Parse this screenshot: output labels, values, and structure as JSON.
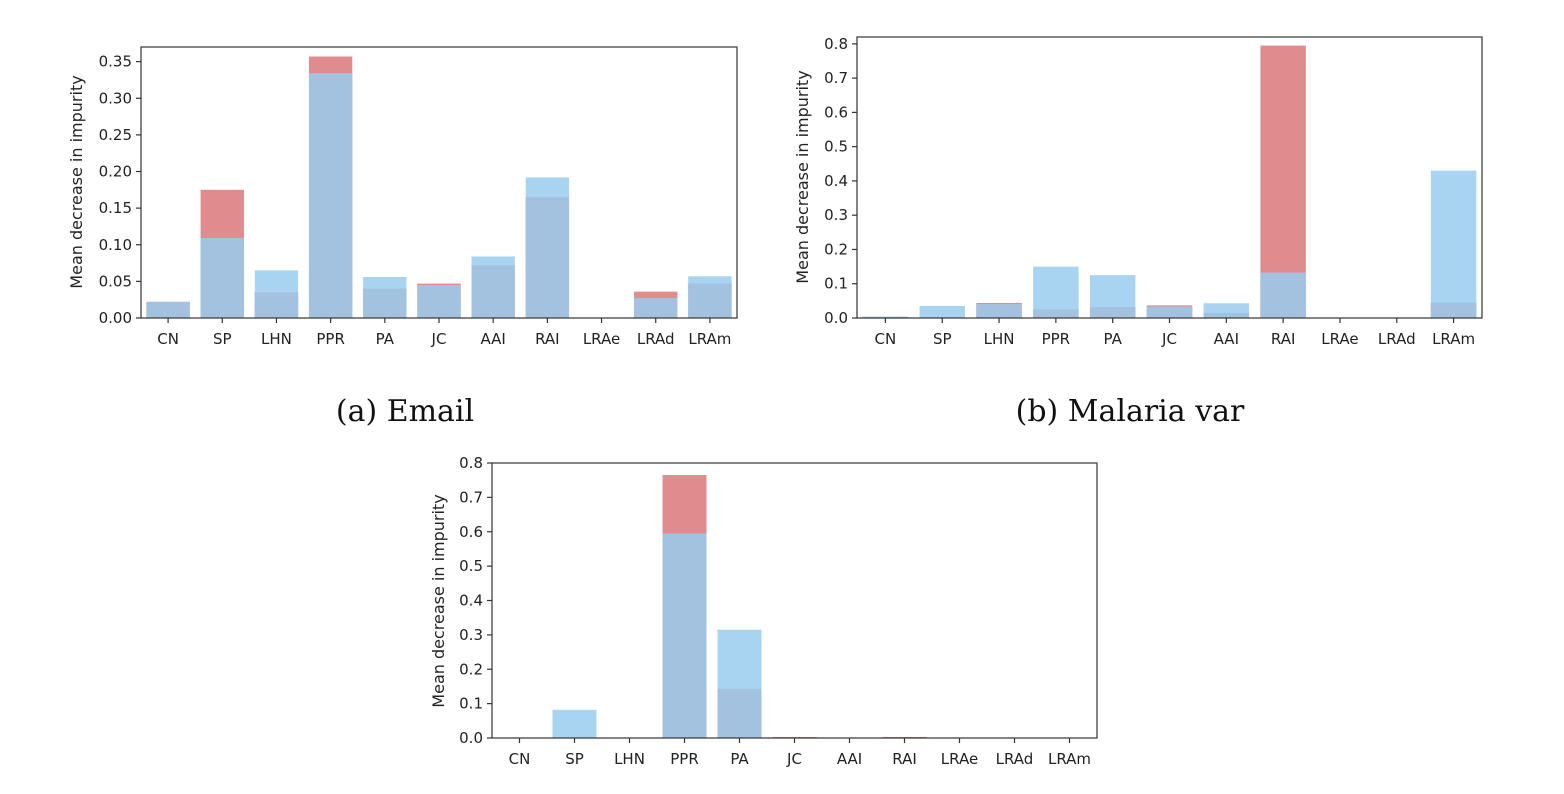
{
  "colors": {
    "red": "#e08c8e",
    "light_blue": "#a8d4f1",
    "overlap": "#a3c2df",
    "axis": "#333333"
  },
  "chart_data": [
    {
      "type": "bar",
      "caption": "(a) Email",
      "categories": [
        "CN",
        "SP",
        "LHN",
        "PPR",
        "PA",
        "JC",
        "AAI",
        "RAI",
        "LRAe",
        "LRAd",
        "LRAm"
      ],
      "ylabel": "Mean decrease in impurity",
      "ylim": [
        0,
        0.37
      ],
      "yticks": [
        0.0,
        0.05,
        0.1,
        0.15,
        0.2,
        0.25,
        0.3,
        0.35
      ],
      "ytick_labels": [
        "0.00",
        "0.05",
        "0.10",
        "0.15",
        "0.20",
        "0.25",
        "0.30",
        "0.35"
      ],
      "series": [
        {
          "color": "red",
          "values": [
            0.022,
            0.175,
            0.035,
            0.357,
            0.04,
            0.047,
            0.072,
            0.165,
            0.0,
            0.036,
            0.047
          ]
        },
        {
          "color": "light_blue",
          "values": [
            0.022,
            0.109,
            0.065,
            0.334,
            0.056,
            0.045,
            0.084,
            0.192,
            0.0,
            0.027,
            0.057
          ]
        }
      ]
    },
    {
      "type": "bar",
      "caption": "(b) Malaria var",
      "categories": [
        "CN",
        "SP",
        "LHN",
        "PPR",
        "PA",
        "JC",
        "AAI",
        "RAI",
        "LRAe",
        "LRAd",
        "LRAm"
      ],
      "ylabel": "Mean decrease in impurity",
      "ylim": [
        0,
        0.82
      ],
      "yticks": [
        0.0,
        0.1,
        0.2,
        0.3,
        0.4,
        0.5,
        0.6,
        0.7,
        0.8
      ],
      "ytick_labels": [
        "0.0",
        "0.1",
        "0.2",
        "0.3",
        "0.4",
        "0.5",
        "0.6",
        "0.7",
        "0.8"
      ],
      "series": [
        {
          "color": "red",
          "values": [
            0.003,
            0.0,
            0.044,
            0.025,
            0.032,
            0.037,
            0.015,
            0.795,
            0.0,
            0.0,
            0.045
          ]
        },
        {
          "color": "light_blue",
          "values": [
            0.004,
            0.035,
            0.04,
            0.15,
            0.125,
            0.033,
            0.043,
            0.132,
            0.0,
            0.0,
            0.43
          ]
        }
      ]
    },
    {
      "type": "bar",
      "caption": "",
      "categories": [
        "CN",
        "SP",
        "LHN",
        "PPR",
        "PA",
        "JC",
        "AAI",
        "RAI",
        "LRAe",
        "LRAd",
        "LRAm"
      ],
      "ylabel": "Mean decrease in impurity",
      "ylim": [
        0,
        0.8
      ],
      "yticks": [
        0.0,
        0.1,
        0.2,
        0.3,
        0.4,
        0.5,
        0.6,
        0.7,
        0.8
      ],
      "ytick_labels": [
        "0.0",
        "0.1",
        "0.2",
        "0.3",
        "0.4",
        "0.5",
        "0.6",
        "0.7",
        "0.8"
      ],
      "series": [
        {
          "color": "red",
          "values": [
            0.0,
            0.0,
            0.0,
            0.765,
            0.143,
            0.003,
            0.0,
            0.003,
            0.0,
            0.0,
            0.0
          ]
        },
        {
          "color": "light_blue",
          "values": [
            0.0,
            0.082,
            0.0,
            0.595,
            0.315,
            0.0,
            0.0,
            0.0,
            0.0,
            0.0,
            0.0
          ]
        }
      ]
    }
  ]
}
